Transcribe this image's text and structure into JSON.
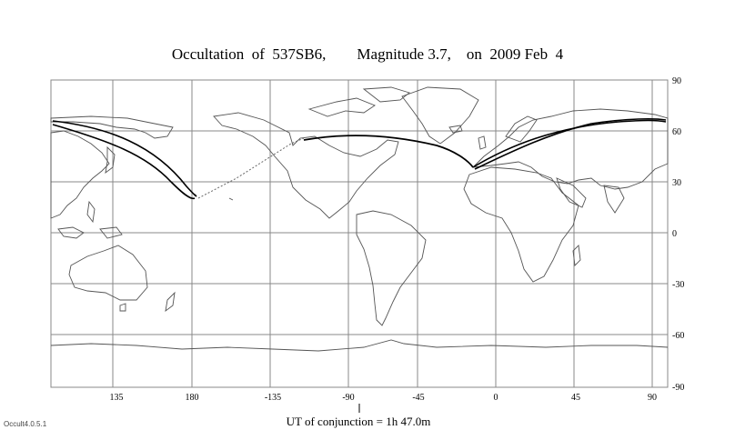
{
  "title": "Occultation  of  537SB6,        Magnitude 3.7,    on  2009 Feb  4",
  "x_ticks": [
    "135",
    "180",
    "-135",
    "-90",
    "-45",
    "0",
    "45",
    "90"
  ],
  "y_ticks": [
    "90",
    "60",
    "30",
    "0",
    "-30",
    "-60",
    "-90"
  ],
  "conjunction_label": "UT of conjunction =  1h 47.0m",
  "version": "Occult4.0.5.1"
}
